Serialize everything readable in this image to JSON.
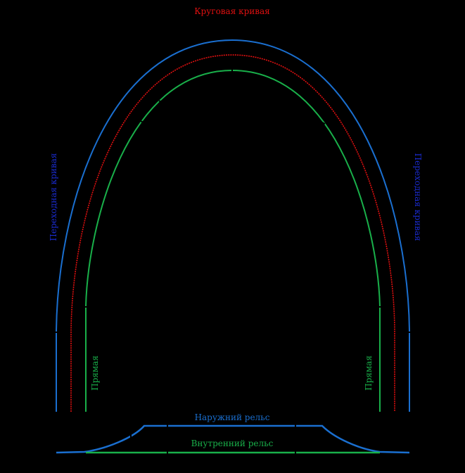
{
  "labels": {
    "circular_curve": "Круговая кривая",
    "transition_left": "Переходная кривая",
    "transition_right": "Переходная кривая",
    "straight_left": "Прямая",
    "straight_right": "Прямая",
    "outer_rail": "Наружний рельс",
    "inner_rail": "Внутренний рельс"
  },
  "colors": {
    "background": "#000000",
    "circular": "#e01010",
    "outer": "#1a6fd0",
    "inner": "#19b04a",
    "transition_text": "#1a2bd0",
    "marker": "#000000"
  }
}
